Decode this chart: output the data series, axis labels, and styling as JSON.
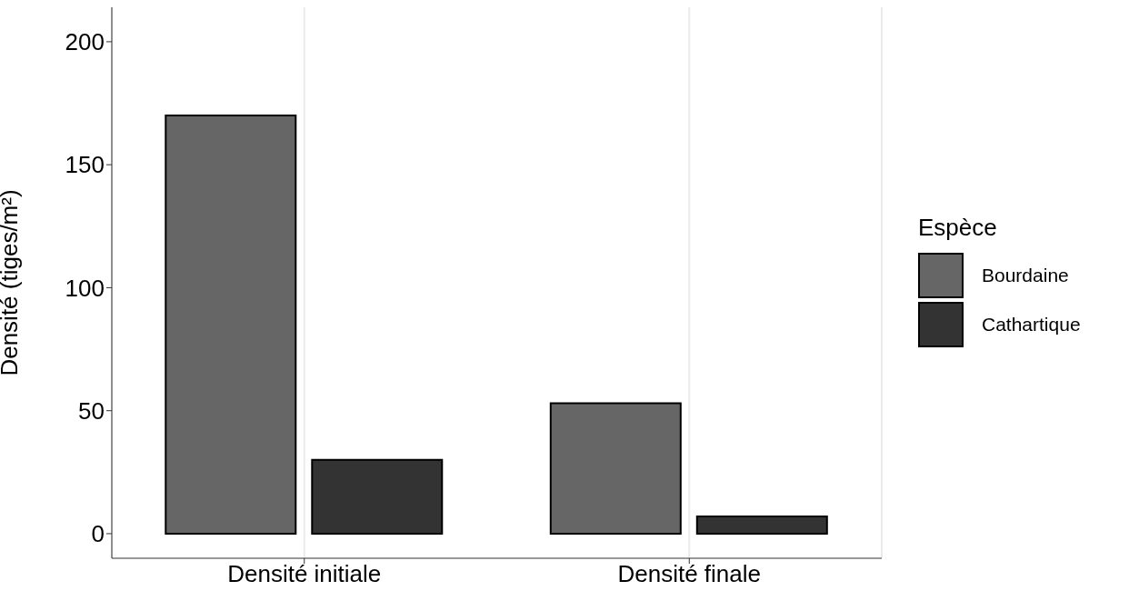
{
  "chart_data": {
    "type": "bar",
    "ylabel": "Densité (tiges/m²)",
    "legend_title": "Espèce",
    "categories": [
      "Densité initiale",
      "Densité finale"
    ],
    "series": [
      {
        "name": "Bourdaine",
        "color": "#666666",
        "values": [
          170,
          53
        ]
      },
      {
        "name": "Cathartique",
        "color": "#333333",
        "values": [
          30,
          7
        ]
      }
    ],
    "ylim": [
      -10,
      214
    ],
    "yticks": [
      0,
      50,
      100,
      150,
      200
    ],
    "grid": true,
    "legend": "right"
  }
}
